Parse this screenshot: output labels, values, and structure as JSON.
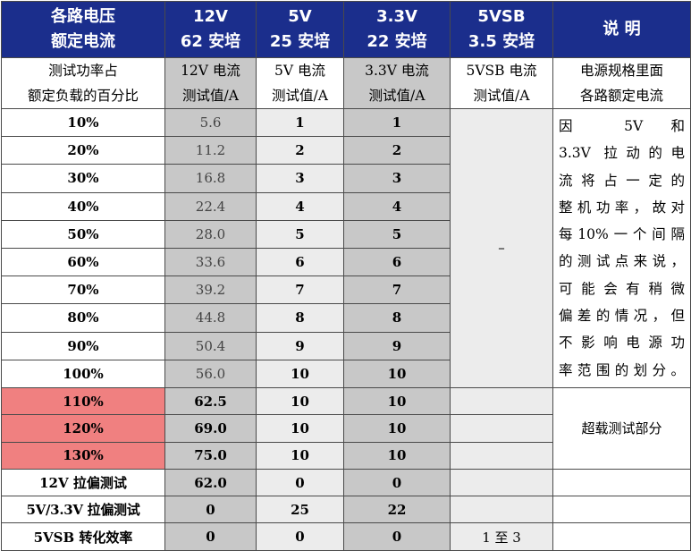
{
  "header": {
    "c1": [
      "各路电压",
      "额定电流"
    ],
    "c2": [
      "12V",
      "62 安培"
    ],
    "c3": [
      "5V",
      "25 安培"
    ],
    "c4": [
      "3.3V",
      "22 安培"
    ],
    "c5": [
      "5VSB",
      "3.5 安培"
    ],
    "c6": "说 明"
  },
  "subheader": {
    "c1": [
      "测试功率占",
      "额定负载的百分比"
    ],
    "c2": [
      "12V 电流",
      "测试值/A"
    ],
    "c3": [
      "5V 电流",
      "测试值/A"
    ],
    "c4": [
      "3.3V 电流",
      "测试值/A"
    ],
    "c5": [
      "5VSB 电流",
      "测试值/A"
    ],
    "c6": [
      "电源规格里面",
      "各路额定电流"
    ]
  },
  "rows": [
    {
      "label": "10%",
      "v12": "5.6",
      "v5": "1",
      "v33": "1"
    },
    {
      "label": "20%",
      "v12": "11.2",
      "v5": "2",
      "v33": "2"
    },
    {
      "label": "30%",
      "v12": "16.8",
      "v5": "3",
      "v33": "3"
    },
    {
      "label": "40%",
      "v12": "22.4",
      "v5": "4",
      "v33": "4"
    },
    {
      "label": "50%",
      "v12": "28.0",
      "v5": "5",
      "v33": "5"
    },
    {
      "label": "60%",
      "v12": "33.6",
      "v5": "6",
      "v33": "6"
    },
    {
      "label": "70%",
      "v12": "39.2",
      "v5": "7",
      "v33": "7"
    },
    {
      "label": "80%",
      "v12": "44.8",
      "v5": "8",
      "v33": "8"
    },
    {
      "label": "90%",
      "v12": "50.4",
      "v5": "9",
      "v33": "9"
    },
    {
      "label": "100%",
      "v12": "56.0",
      "v5": "10",
      "v33": "10"
    },
    {
      "label": "110%",
      "v12": "62.5",
      "v5": "10",
      "v33": "10"
    },
    {
      "label": "120%",
      "v12": "69.0",
      "v5": "10",
      "v33": "10"
    },
    {
      "label": "130%",
      "v12": "75.0",
      "v5": "10",
      "v33": "10"
    },
    {
      "label": "12V 拉偏测试",
      "v12": "62.0",
      "v5": "0",
      "v33": "0"
    },
    {
      "label": "5V/3.3V 拉偏测试",
      "v12": "0",
      "v5": "25",
      "v33": "22"
    },
    {
      "label": "5VSB 转化效率",
      "v12": "0",
      "v5": "0",
      "v33": "0"
    }
  ],
  "vsb_dash": "–",
  "vsb_last": "1 至 3",
  "note_lines": [
    "因 5V 和",
    "3.3V 拉动的电",
    "流将占一定的",
    "整机功率，故对",
    "每10%一个间隔",
    "的测试点来说，",
    "可能会有稍微",
    "偏差的情况，但",
    "不影响电源功",
    "率范围的划分。"
  ],
  "overload_note": "超载测试部分"
}
